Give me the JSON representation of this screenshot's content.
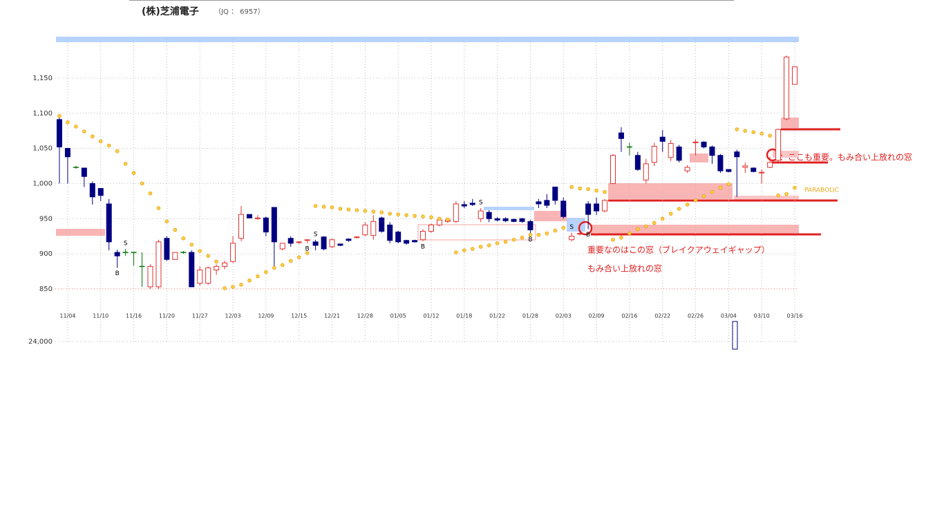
{
  "chart_data": {
    "type": "candlestick",
    "title": "(株)芝浦電子",
    "subtitle": "（JQ ： 6957）",
    "categories": [
      null,
      "11/04",
      null,
      null,
      null,
      "11/10",
      null,
      null,
      null,
      "11/16",
      null,
      null,
      null,
      "11/20",
      null,
      null,
      null,
      "11/27",
      null,
      null,
      null,
      "12/03",
      null,
      null,
      null,
      "12/09",
      null,
      null,
      null,
      "12/15",
      null,
      null,
      null,
      "12/21",
      null,
      null,
      null,
      "12/28",
      null,
      null,
      null,
      "01/05",
      null,
      null,
      null,
      "01/12",
      null,
      null,
      null,
      "01/18",
      null,
      null,
      null,
      "01/22",
      null,
      null,
      null,
      "01/28",
      null,
      null,
      null,
      "02/03",
      null,
      null,
      null,
      "02/09",
      null,
      null,
      null,
      "02/16",
      null,
      null,
      null,
      "02/22",
      null,
      null,
      null,
      "02/26",
      null,
      null,
      null,
      "03/04",
      null,
      null,
      null,
      "03/10",
      null,
      null,
      null,
      "03/16"
    ],
    "open": [
      1091,
      1050,
      1023,
      1022,
      1000,
      993,
      971,
      902,
      902,
      902,
      882,
      853,
      853,
      922,
      892,
      902,
      902,
      858,
      858,
      877,
      882,
      889,
      922,
      956,
      950,
      951,
      966,
      907,
      922,
      916,
      919,
      917,
      924,
      910,
      914,
      921,
      923,
      927,
      926,
      951,
      941,
      931,
      919,
      919,
      920,
      932,
      941,
      946,
      946,
      970,
      972,
      950,
      959,
      950,
      950,
      949,
      950,
      946,
      974,
      976,
      995,
      975,
      920,
      928,
      971,
      971,
      961,
      1000,
      1072,
      1052,
      1040,
      1005,
      1030,
      1066,
      1037,
      1052,
      1018,
      1058,
      1059,
      1052,
      1040,
      1020,
      1045,
      1023,
      1022,
      1015,
      1023,
      1033,
      1092,
      1141
    ],
    "high": [
      1095,
      1050,
      1025,
      1022,
      1003,
      993,
      978,
      906,
      907,
      902,
      902,
      885,
      920,
      925,
      902,
      904,
      905,
      882,
      882,
      885,
      890,
      925,
      968,
      956,
      955,
      953,
      966,
      915,
      925,
      918,
      920,
      920,
      925,
      922,
      914,
      922,
      925,
      945,
      955,
      953,
      945,
      933,
      920,
      920,
      935,
      943,
      948,
      948,
      975,
      975,
      978,
      965,
      962,
      952,
      952,
      950,
      951,
      948,
      978,
      985,
      995,
      980,
      930,
      930,
      975,
      980,
      978,
      1042,
      1080,
      1058,
      1045,
      1035,
      1058,
      1076,
      1062,
      1055,
      1026,
      1063,
      1060,
      1054,
      1042,
      1020,
      1048,
      1030,
      1023,
      1020,
      1038,
      1078,
      1182,
      1166
    ],
    "low": [
      1000,
      1000,
      1021,
      995,
      970,
      975,
      905,
      880,
      897,
      883,
      853,
      850,
      850,
      890,
      892,
      900,
      853,
      855,
      856,
      870,
      878,
      887,
      918,
      951,
      948,
      925,
      880,
      905,
      910,
      914,
      915,
      905,
      905,
      908,
      911,
      917,
      922,
      925,
      920,
      930,
      915,
      915,
      913,
      916,
      918,
      930,
      939,
      944,
      944,
      965,
      968,
      945,
      945,
      946,
      945,
      945,
      944,
      928,
      965,
      965,
      970,
      950,
      918,
      926,
      935,
      955,
      959,
      1000,
      1045,
      1040,
      1018,
      1000,
      1025,
      1045,
      1032,
      1030,
      1015,
      1040,
      1050,
      1028,
      1015,
      1016,
      981,
      1015,
      1016,
      1000,
      1022,
      1030,
      1090,
      1141
    ],
    "close": [
      1052,
      1038,
      1023,
      1010,
      981,
      983,
      917,
      897,
      902,
      902,
      882,
      882,
      917,
      892,
      902,
      902,
      853,
      877,
      880,
      882,
      887,
      915,
      956,
      951,
      951,
      931,
      917,
      915,
      915,
      917,
      920,
      912,
      907,
      920,
      912,
      919,
      924,
      941,
      946,
      932,
      919,
      917,
      915,
      917,
      932,
      941,
      948,
      948,
      971,
      968,
      970,
      961,
      950,
      948,
      947,
      946,
      946,
      934,
      971,
      969,
      976,
      953,
      925,
      929,
      956,
      961,
      976,
      1040,
      1064,
      1052,
      1020,
      1028,
      1053,
      1060,
      1057,
      1033,
      1023,
      1059,
      1052,
      1040,
      1018,
      1017,
      1038,
      1025,
      1017,
      1016,
      1030,
      1077,
      1180,
      1166
    ],
    "signals": [
      null,
      null,
      null,
      null,
      null,
      null,
      null,
      "B",
      "S",
      null,
      null,
      null,
      null,
      null,
      null,
      null,
      null,
      null,
      null,
      null,
      null,
      null,
      null,
      null,
      null,
      null,
      null,
      null,
      null,
      null,
      "B",
      "S",
      null,
      null,
      null,
      null,
      null,
      null,
      null,
      null,
      null,
      null,
      null,
      null,
      "B",
      null,
      null,
      null,
      null,
      null,
      null,
      "S",
      null,
      null,
      null,
      null,
      null,
      "B",
      null,
      null,
      null,
      null,
      "S",
      null,
      "B",
      null,
      null,
      null,
      null,
      null,
      null,
      null,
      null,
      null,
      null,
      null,
      null,
      null,
      null,
      null,
      null,
      null,
      null,
      null,
      null,
      null,
      null,
      null,
      null,
      null
    ],
    "parabolic": {
      "name": "PARABOLIC",
      "color": "#e6a817",
      "values": [
        1096,
        1087,
        1081,
        1074,
        1067,
        1060,
        1054,
        1046,
        1028,
        1015,
        1000,
        986,
        965,
        946,
        934,
        922,
        913,
        904,
        897,
        889,
        851,
        853,
        856,
        862,
        868,
        874,
        880,
        884,
        890,
        895,
        901,
        968,
        967,
        966,
        964,
        963,
        962,
        961,
        960,
        959,
        957,
        956,
        955,
        954,
        953,
        952,
        950,
        949,
        902,
        905,
        907,
        910,
        912,
        915,
        917,
        920,
        923,
        927,
        927,
        929,
        933,
        937,
        995,
        993,
        992,
        990,
        988,
        920,
        923,
        929,
        935,
        939,
        944,
        950,
        957,
        964,
        970,
        976,
        982,
        988,
        994,
        999,
        1077,
        1075,
        1073,
        1071,
        1068,
        983,
        985,
        994
      ]
    },
    "up_color": "#e03030",
    "down_color": "#000080",
    "doji_color": "#007000",
    "ylim": [
      845,
      1205
    ],
    "yticks": [
      850,
      900,
      950,
      {
        "value": 1000,
        "label": "1,000"
      },
      {
        "value": 1050,
        "label": "1,050"
      },
      {
        "value": 1100,
        "label": "1,100"
      },
      {
        "value": 1150,
        "label": "1,150"
      }
    ],
    "grid": true,
    "volume_yticks": [
      {
        "value": 24000,
        "label": "24,000"
      }
    ],
    "annotations": [
      "重要なのはこの窓（ブレイクアウェイギャップ）",
      "もみ合い上放れの窓",
      "：ここも重要。もみ合い上放れの窓"
    ]
  }
}
